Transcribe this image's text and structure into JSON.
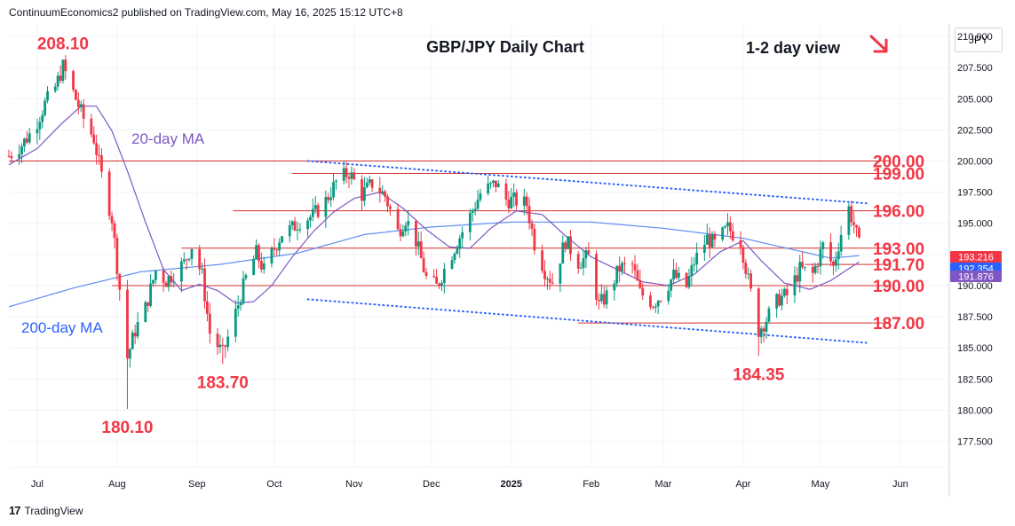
{
  "header": {
    "published_by": "ContinuumEconomics2 published on TradingView.com, May 16, 2025 15:12 UTC+8"
  },
  "footer": {
    "brand": "TradingView",
    "logo_text": "17"
  },
  "currency": "JPY",
  "chart_data": {
    "type": "candlestick",
    "title": "GBP/JPY Daily Chart",
    "subtitle": "1-2 day view",
    "view_direction": "down",
    "y_axis": {
      "ticks": [
        "210.000",
        "207.500",
        "205.000",
        "202.500",
        "200.000",
        "197.500",
        "195.000",
        "192.500",
        "190.000",
        "187.500",
        "185.000",
        "182.500",
        "180.000",
        "177.500"
      ],
      "range": [
        175.4,
        211.0
      ],
      "side": "right"
    },
    "x_axis": {
      "ticks": [
        "Jul",
        "Aug",
        "Sep",
        "Oct",
        "Nov",
        "Dec",
        "2025",
        "Feb",
        "Mar",
        "Apr",
        "May",
        "Jun"
      ],
      "range_start": "2024-06-20",
      "range_end": "2025-06-20"
    },
    "price_labels": [
      {
        "value": 193.216,
        "text": "193.216",
        "color": "#f23645"
      },
      {
        "value": 192.354,
        "text": "192.354",
        "color": "#2962ff"
      },
      {
        "value": 191.876,
        "text": "191.876",
        "color": "#7e57c2"
      }
    ],
    "horizontal_levels": [
      {
        "value": 200.0,
        "label": "200.00",
        "start": "2024-06-20"
      },
      {
        "value": 199.0,
        "label": "199.00",
        "start": "2024-10-08"
      },
      {
        "value": 196.0,
        "label": "196.00",
        "start": "2024-09-15"
      },
      {
        "value": 193.0,
        "label": "193.00",
        "start": "2024-08-26"
      },
      {
        "value": 191.7,
        "label": "191.70",
        "start": "2025-04-25"
      },
      {
        "value": 190.0,
        "label": "190.00",
        "start": "2024-07-30"
      },
      {
        "value": 187.0,
        "label": "187.00",
        "start": "2025-01-27"
      }
    ],
    "trendlines": [
      {
        "name": "upper-channel",
        "from": [
          "2024-10-14",
          200.0
        ],
        "to": [
          "2025-05-19",
          196.6
        ]
      },
      {
        "name": "lower-channel",
        "from": [
          "2024-10-14",
          188.9
        ],
        "to": [
          "2025-05-19",
          185.4
        ]
      }
    ],
    "annotations": [
      {
        "text": "208.10",
        "date": "2024-07-11",
        "value": 208.1,
        "color": "#f23645",
        "pos": "above"
      },
      {
        "text": "180.10",
        "date": "2024-08-05",
        "value": 180.1,
        "color": "#f23645",
        "pos": "below"
      },
      {
        "text": "183.70",
        "date": "2024-09-11",
        "value": 183.7,
        "color": "#f23645",
        "pos": "below"
      },
      {
        "text": "184.35",
        "date": "2025-04-07",
        "value": 184.35,
        "color": "#f23645",
        "pos": "below"
      }
    ],
    "ma_labels": [
      {
        "text": "20-day MA",
        "color": "#7e57c2"
      },
      {
        "text": "200-day MA",
        "color": "#2962ff"
      }
    ],
    "closes": [
      [
        "2024-06-20",
        200.4
      ],
      [
        "2024-06-25",
        201.3
      ],
      [
        "2024-06-30",
        202.7
      ],
      [
        "2024-07-04",
        204.6
      ],
      [
        "2024-07-08",
        205.9
      ],
      [
        "2024-07-11",
        207.6
      ],
      [
        "2024-07-15",
        205.5
      ],
      [
        "2024-07-19",
        203.4
      ],
      [
        "2024-07-23",
        201.8
      ],
      [
        "2024-07-26",
        198.8
      ],
      [
        "2024-07-30",
        195.4
      ],
      [
        "2024-08-01",
        191.6
      ],
      [
        "2024-08-05",
        184.2
      ],
      [
        "2024-08-08",
        186.4
      ],
      [
        "2024-08-12",
        188.2
      ],
      [
        "2024-08-16",
        191.2
      ],
      [
        "2024-08-20",
        190.4
      ],
      [
        "2024-08-23",
        191.0
      ],
      [
        "2024-08-27",
        191.8
      ],
      [
        "2024-08-30",
        193.2
      ],
      [
        "2024-09-03",
        190.8
      ],
      [
        "2024-09-06",
        186.2
      ],
      [
        "2024-09-11",
        184.5
      ],
      [
        "2024-09-16",
        187.8
      ],
      [
        "2024-09-20",
        190.6
      ],
      [
        "2024-09-24",
        192.6
      ],
      [
        "2024-09-27",
        191.2
      ],
      [
        "2024-10-01",
        193.0
      ],
      [
        "2024-10-04",
        194.2
      ],
      [
        "2024-10-08",
        194.6
      ],
      [
        "2024-10-11",
        195.2
      ],
      [
        "2024-10-16",
        195.6
      ],
      [
        "2024-10-21",
        196.8
      ],
      [
        "2024-10-25",
        198.3
      ],
      [
        "2024-10-30",
        199.1
      ],
      [
        "2024-11-04",
        197.3
      ],
      [
        "2024-11-08",
        198.2
      ],
      [
        "2024-11-13",
        197.2
      ],
      [
        "2024-11-18",
        194.3
      ],
      [
        "2024-11-21",
        195.4
      ],
      [
        "2024-11-25",
        193.6
      ],
      [
        "2024-11-29",
        190.6
      ],
      [
        "2024-12-03",
        189.9
      ],
      [
        "2024-12-06",
        191.3
      ],
      [
        "2024-12-11",
        193.5
      ],
      [
        "2024-12-16",
        195.6
      ],
      [
        "2024-12-20",
        197.4
      ],
      [
        "2024-12-26",
        198.2
      ],
      [
        "2024-12-30",
        196.9
      ],
      [
        "2025-01-03",
        196.8
      ],
      [
        "2025-01-07",
        196.5
      ],
      [
        "2025-01-10",
        193.4
      ],
      [
        "2025-01-14",
        191.2
      ],
      [
        "2025-01-17",
        190.3
      ],
      [
        "2025-01-22",
        193.6
      ],
      [
        "2025-01-27",
        191.9
      ],
      [
        "2025-01-31",
        192.3
      ],
      [
        "2025-02-04",
        188.4
      ],
      [
        "2025-02-07",
        189.2
      ],
      [
        "2025-02-12",
        191.4
      ],
      [
        "2025-02-17",
        191.6
      ],
      [
        "2025-02-20",
        189.4
      ],
      [
        "2025-02-25",
        188.6
      ],
      [
        "2025-02-28",
        189.2
      ],
      [
        "2025-03-05",
        190.8
      ],
      [
        "2025-03-10",
        189.9
      ],
      [
        "2025-03-13",
        191.9
      ],
      [
        "2025-03-18",
        193.8
      ],
      [
        "2025-03-21",
        193.3
      ],
      [
        "2025-03-26",
        194.6
      ],
      [
        "2025-03-31",
        193.6
      ],
      [
        "2025-04-03",
        190.4
      ],
      [
        "2025-04-07",
        186.4
      ],
      [
        "2025-04-10",
        187.3
      ],
      [
        "2025-04-15",
        189.0
      ],
      [
        "2025-04-18",
        189.2
      ],
      [
        "2025-04-23",
        191.3
      ],
      [
        "2025-04-28",
        190.9
      ],
      [
        "2025-05-02",
        193.2
      ],
      [
        "2025-05-06",
        191.5
      ],
      [
        "2025-05-09",
        194.2
      ],
      [
        "2025-05-12",
        196.2
      ],
      [
        "2025-05-14",
        194.9
      ],
      [
        "2025-05-16",
        193.2
      ]
    ],
    "ma20": [
      [
        "2024-06-20",
        199.7
      ],
      [
        "2024-07-01",
        201.0
      ],
      [
        "2024-07-10",
        202.9
      ],
      [
        "2024-07-18",
        204.4
      ],
      [
        "2024-07-24",
        204.4
      ],
      [
        "2024-07-30",
        202.4
      ],
      [
        "2024-08-05",
        199.2
      ],
      [
        "2024-08-12",
        195.1
      ],
      [
        "2024-08-19",
        191.3
      ],
      [
        "2024-08-26",
        189.6
      ],
      [
        "2024-09-02",
        190.1
      ],
      [
        "2024-09-09",
        189.6
      ],
      [
        "2024-09-16",
        188.6
      ],
      [
        "2024-09-23",
        188.7
      ],
      [
        "2024-09-30",
        190.0
      ],
      [
        "2024-10-08",
        192.3
      ],
      [
        "2024-10-16",
        194.3
      ],
      [
        "2024-10-24",
        195.9
      ],
      [
        "2024-11-01",
        197.0
      ],
      [
        "2024-11-11",
        197.5
      ],
      [
        "2024-11-20",
        196.2
      ],
      [
        "2024-11-29",
        194.5
      ],
      [
        "2024-12-08",
        193.1
      ],
      [
        "2024-12-16",
        193.0
      ],
      [
        "2024-12-24",
        194.6
      ],
      [
        "2025-01-03",
        196.0
      ],
      [
        "2025-01-13",
        195.7
      ],
      [
        "2025-01-22",
        194.0
      ],
      [
        "2025-02-01",
        192.3
      ],
      [
        "2025-02-11",
        191.3
      ],
      [
        "2025-02-21",
        190.3
      ],
      [
        "2025-03-03",
        190.0
      ],
      [
        "2025-03-13",
        190.9
      ],
      [
        "2025-03-23",
        192.7
      ],
      [
        "2025-04-01",
        193.6
      ],
      [
        "2025-04-08",
        192.0
      ],
      [
        "2025-04-17",
        190.2
      ],
      [
        "2025-04-27",
        189.7
      ],
      [
        "2025-05-05",
        190.4
      ],
      [
        "2025-05-16",
        191.9
      ]
    ],
    "ma200": [
      [
        "2024-06-20",
        188.3
      ],
      [
        "2024-07-15",
        189.8
      ],
      [
        "2024-08-10",
        191.1
      ],
      [
        "2024-09-10",
        191.7
      ],
      [
        "2024-10-10",
        192.6
      ],
      [
        "2024-11-05",
        194.1
      ],
      [
        "2024-12-01",
        194.7
      ],
      [
        "2025-01-01",
        195.1
      ],
      [
        "2025-02-01",
        195.1
      ],
      [
        "2025-03-01",
        194.6
      ],
      [
        "2025-04-01",
        193.8
      ],
      [
        "2025-04-20",
        192.9
      ],
      [
        "2025-05-05",
        192.2
      ],
      [
        "2025-05-16",
        192.4
      ]
    ]
  }
}
